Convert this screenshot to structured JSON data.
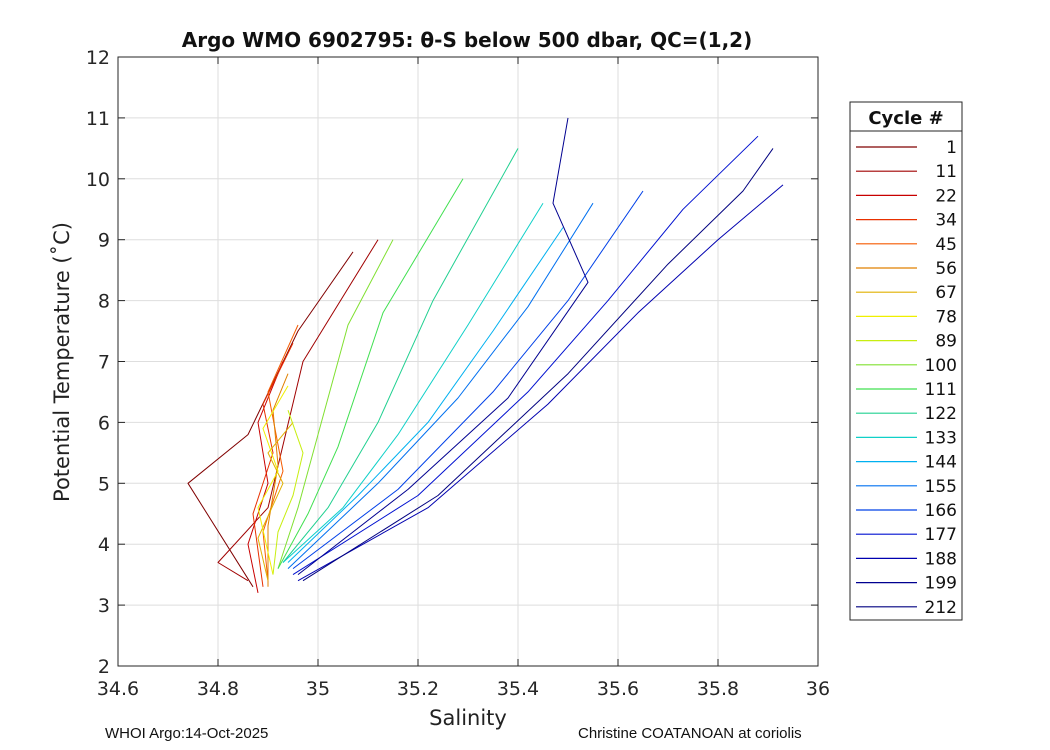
{
  "chart_data": {
    "type": "line",
    "title": "Argo WMO 6902795: θ-S below 500 dbar,  QC=(1,2)",
    "xlabel": "Salinity",
    "ylabel": "Potential Temperature (˚C)",
    "xlim": [
      34.6,
      36
    ],
    "ylim": [
      2,
      12
    ],
    "xticks": [
      34.6,
      34.8,
      35,
      35.2,
      35.4,
      35.6,
      35.8,
      36
    ],
    "xtick_labels": [
      "34.6",
      "34.8",
      "35",
      "35.2",
      "35.4",
      "35.6",
      "35.8",
      "36"
    ],
    "yticks": [
      2,
      3,
      4,
      5,
      6,
      7,
      8,
      9,
      10,
      11,
      12
    ],
    "ytick_labels": [
      "2",
      "3",
      "4",
      "5",
      "6",
      "7",
      "8",
      "9",
      "10",
      "11",
      "12"
    ],
    "grid": true,
    "legend_title": "Cycle #",
    "legend_placement": "outside-right",
    "series": [
      {
        "name": "1",
        "color": "#800000",
        "s": [
          34.87,
          34.74,
          34.86,
          34.96,
          35.07
        ],
        "t": [
          3.3,
          5.0,
          5.8,
          7.5,
          8.8
        ]
      },
      {
        "name": "11",
        "color": "#a00000",
        "s": [
          34.86,
          34.8,
          34.9,
          34.97,
          35.12
        ],
        "t": [
          3.4,
          3.7,
          4.6,
          7.0,
          9.0
        ]
      },
      {
        "name": "22",
        "color": "#c80000",
        "s": [
          34.88,
          34.86,
          34.9,
          34.88,
          34.93
        ],
        "t": [
          3.2,
          4.0,
          5.0,
          6.0,
          7.0
        ]
      },
      {
        "name": "34",
        "color": "#e83000",
        "s": [
          34.89,
          34.87,
          34.91,
          34.89,
          34.95
        ],
        "t": [
          3.3,
          4.5,
          5.5,
          6.3,
          7.3
        ]
      },
      {
        "name": "45",
        "color": "#f55a00",
        "s": [
          34.9,
          34.89,
          34.93,
          34.9,
          34.96
        ],
        "t": [
          3.4,
          4.2,
          5.2,
          6.5,
          7.6
        ]
      },
      {
        "name": "56",
        "color": "#e08000",
        "s": [
          34.9,
          34.9,
          34.92,
          34.91,
          34.94
        ],
        "t": [
          3.3,
          4.3,
          5.3,
          6.2,
          6.8
        ]
      },
      {
        "name": "67",
        "color": "#e0b000",
        "s": [
          34.9,
          34.88,
          34.93,
          34.9,
          34.95
        ],
        "t": [
          3.4,
          4.1,
          5.0,
          5.5,
          6.0
        ]
      },
      {
        "name": "78",
        "color": "#f0f000",
        "s": [
          34.91,
          34.88,
          34.92,
          34.89,
          34.94
        ],
        "t": [
          3.5,
          4.6,
          5.2,
          5.9,
          6.6
        ]
      },
      {
        "name": "89",
        "color": "#c8ee10",
        "s": [
          34.91,
          34.92,
          34.95,
          34.97,
          34.94
        ],
        "t": [
          3.5,
          4.2,
          4.8,
          5.5,
          6.2
        ]
      },
      {
        "name": "100",
        "color": "#80e030",
        "s": [
          34.92,
          34.96,
          35.0,
          35.06,
          35.15
        ],
        "t": [
          3.6,
          4.6,
          5.8,
          7.6,
          9.0
        ]
      },
      {
        "name": "111",
        "color": "#40e050",
        "s": [
          34.92,
          34.98,
          35.04,
          35.13,
          35.29
        ],
        "t": [
          3.6,
          4.5,
          5.6,
          7.8,
          10.0
        ]
      },
      {
        "name": "122",
        "color": "#20d090",
        "s": [
          34.93,
          35.02,
          35.12,
          35.23,
          35.4
        ],
        "t": [
          3.7,
          4.6,
          6.0,
          8.0,
          10.5
        ]
      },
      {
        "name": "133",
        "color": "#10d0c8",
        "s": [
          34.93,
          35.05,
          35.16,
          35.3,
          35.45
        ],
        "t": [
          3.7,
          4.6,
          5.8,
          7.6,
          9.6
        ]
      },
      {
        "name": "144",
        "color": "#00b0f0",
        "s": [
          34.94,
          35.08,
          35.22,
          35.35,
          35.49
        ],
        "t": [
          3.7,
          4.8,
          6.0,
          7.5,
          9.2
        ]
      },
      {
        "name": "155",
        "color": "#0070f0",
        "s": [
          34.94,
          35.12,
          35.28,
          35.42,
          35.55
        ],
        "t": [
          3.6,
          5.0,
          6.4,
          7.9,
          9.6
        ]
      },
      {
        "name": "166",
        "color": "#0040e8",
        "s": [
          34.95,
          35.16,
          35.35,
          35.5,
          35.65
        ],
        "t": [
          3.6,
          4.9,
          6.5,
          8.0,
          9.8
        ]
      },
      {
        "name": "177",
        "color": "#0010d0",
        "s": [
          34.95,
          35.2,
          35.42,
          35.58,
          35.73,
          35.88
        ],
        "t": [
          3.5,
          4.8,
          6.5,
          8.0,
          9.5,
          10.7
        ]
      },
      {
        "name": "188",
        "color": "#0000b0",
        "s": [
          34.96,
          35.22,
          35.46,
          35.64,
          35.8,
          35.93
        ],
        "t": [
          3.4,
          4.6,
          6.3,
          7.8,
          9.0,
          9.9
        ]
      },
      {
        "name": "199",
        "color": "#000090",
        "s": [
          34.96,
          35.18,
          35.38,
          35.54,
          35.47,
          35.5
        ],
        "t": [
          3.5,
          4.9,
          6.4,
          8.3,
          9.6,
          11.0
        ]
      },
      {
        "name": "212",
        "color": "#000080",
        "s": [
          34.97,
          35.24,
          35.5,
          35.7,
          35.85,
          35.91
        ],
        "t": [
          3.4,
          4.8,
          6.8,
          8.6,
          9.8,
          10.5
        ]
      }
    ]
  },
  "footer": {
    "left": "WHOI Argo:14-Oct-2025",
    "right": "Christine COATANOAN at coriolis"
  }
}
